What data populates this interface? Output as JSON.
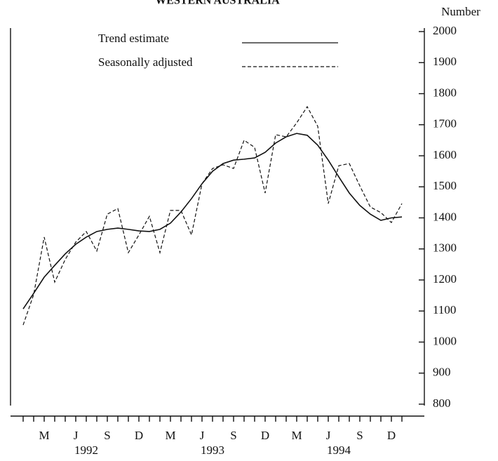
{
  "chart_data": {
    "type": "line",
    "title": "WESTERN AUSTRALIA",
    "y_axis_label": "Number",
    "categories": [
      null,
      null,
      "M",
      null,
      null,
      "J",
      null,
      null,
      "S",
      null,
      null,
      "D",
      null,
      null,
      "M",
      null,
      null,
      "J",
      null,
      null,
      "S",
      null,
      null,
      "D",
      null,
      null,
      "M",
      null,
      null,
      "J",
      null,
      null,
      "S",
      null,
      null,
      "D",
      null
    ],
    "year_labels": [
      "1992",
      "1993",
      "1994"
    ],
    "series": [
      {
        "name": "Trend estimate",
        "color": "#111111",
        "dash": false,
        "values": [
          1107,
          1157,
          1209,
          1247,
          1284,
          1315,
          1338,
          1356,
          1363,
          1367,
          1363,
          1358,
          1356,
          1363,
          1383,
          1419,
          1462,
          1510,
          1550,
          1575,
          1586,
          1589,
          1593,
          1611,
          1641,
          1661,
          1672,
          1666,
          1634,
          1586,
          1532,
          1480,
          1440,
          1412,
          1392,
          1400,
          1403
        ]
      },
      {
        "name": "Seasonally adjusted",
        "color": "#111111",
        "dash": true,
        "values": [
          1055,
          1153,
          1338,
          1193,
          1266,
          1322,
          1356,
          1293,
          1412,
          1430,
          1288,
          1345,
          1405,
          1288,
          1424,
          1424,
          1345,
          1510,
          1559,
          1571,
          1559,
          1650,
          1627,
          1480,
          1668,
          1661,
          1706,
          1758,
          1695,
          1446,
          1568,
          1575,
          1503,
          1435,
          1417,
          1385,
          1446
        ]
      }
    ],
    "ylim": [
      800,
      2000
    ],
    "yticks": [
      800,
      900,
      1000,
      1100,
      1200,
      1300,
      1400,
      1500,
      1600,
      1700,
      1800,
      1900,
      2000
    ],
    "grid": false,
    "legend": "top-left"
  }
}
